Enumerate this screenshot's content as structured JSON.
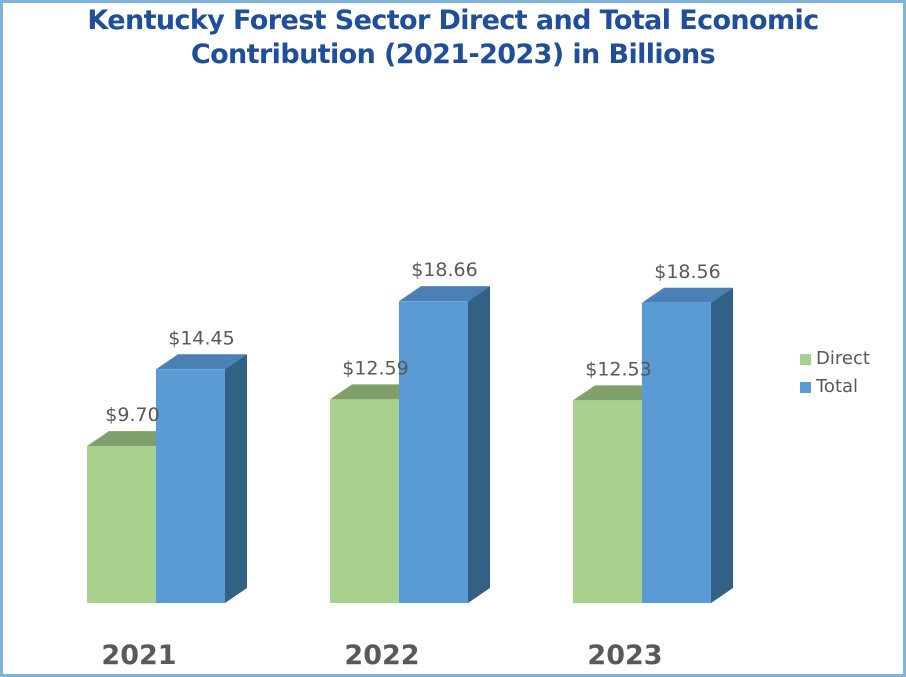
{
  "title_line1": "Kentucky Forest Sector Direct and Total Economic",
  "title_line2": "Contribution (2021-2023) in Billions",
  "colors": {
    "direct_front": "#a9d18e",
    "direct_top": "#7fa06a",
    "total_front": "#5b9bd5",
    "total_top": "#4a80b3",
    "total_side": "#316184",
    "border": "#7fb2dc",
    "title": "#1f4e9a"
  },
  "chart_data": {
    "type": "bar",
    "categories": [
      "2021",
      "2022",
      "2023"
    ],
    "series": [
      {
        "name": "Direct",
        "values": [
          9.7,
          12.59,
          12.53
        ],
        "labels": [
          "$9.70",
          "$12.59",
          "$12.53"
        ]
      },
      {
        "name": "Total",
        "values": [
          14.45,
          18.66,
          18.56
        ],
        "labels": [
          "$14.45",
          "$18.66",
          "$18.56"
        ]
      }
    ],
    "title": "Kentucky Forest Sector Direct and Total Economic Contribution (2021-2023) in Billions",
    "legend_position": "right",
    "ylim": [
      0,
      20
    ],
    "grid": false
  }
}
